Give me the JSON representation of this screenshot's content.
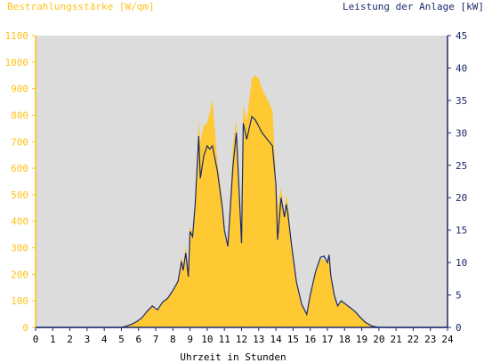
{
  "chart_data": {
    "type": "area",
    "left_axis_label": "Bestrahlungsstärke [W/qm]",
    "right_axis_label": "Leistung der Anlage [kW]",
    "xlabel": "Uhrzeit in Stunden",
    "x_ticks": [
      "0",
      "1",
      "2",
      "3",
      "4",
      "5",
      "6",
      "7",
      "8",
      "9",
      "10",
      "11",
      "12",
      "13",
      "14",
      "15",
      "16",
      "17",
      "18",
      "19",
      "20",
      "21",
      "22",
      "23",
      "24"
    ],
    "xlim": [
      0,
      24
    ],
    "y_left_ticks": [
      "0",
      "100",
      "200",
      "300",
      "400",
      "500",
      "600",
      "700",
      "800",
      "900",
      "1000",
      "1100"
    ],
    "y_left_lim": [
      0,
      1100
    ],
    "y_right_ticks": [
      "0",
      "5",
      "10",
      "15",
      "20",
      "25",
      "30",
      "35",
      "40",
      "45"
    ],
    "y_right_lim": [
      0,
      45
    ],
    "grid": false,
    "colors": {
      "irradiance_fill": "#ffc933",
      "power_line": "#1b2a6b",
      "plot_background": "#dcdcdc",
      "left_axis": "#ffc21a",
      "right_axis": "#1b2a6b"
    },
    "series": [
      {
        "axis": "left",
        "style": "area",
        "x": [
          0,
          5,
          5.3,
          5.6,
          5.9,
          6.2,
          6.5,
          6.8,
          7.1,
          7.4,
          7.7,
          8,
          8.3,
          8.5,
          8.6,
          8.75,
          8.9,
          9,
          9.15,
          9.3,
          9.5,
          9.6,
          9.8,
          10,
          10.15,
          10.3,
          10.6,
          10.9,
          11,
          11.2,
          11.5,
          11.7,
          11.85,
          12,
          12.1,
          12.3,
          12.6,
          12.8,
          13,
          13.2,
          13.5,
          13.8,
          14,
          14.1,
          14.3,
          14.5,
          14.6,
          14.7,
          14.9,
          15.2,
          15.5,
          15.8,
          16,
          16.3,
          16.6,
          16.8,
          17,
          17.1,
          17.2,
          17.4,
          17.6,
          17.8,
          18,
          18.3,
          18.6,
          18.9,
          19.2,
          19.6,
          20,
          24
        ],
        "y": [
          0,
          0,
          5,
          12,
          22,
          35,
          60,
          80,
          65,
          95,
          110,
          140,
          175,
          270,
          230,
          310,
          200,
          380,
          360,
          470,
          780,
          700,
          760,
          770,
          810,
          860,
          620,
          470,
          350,
          300,
          690,
          780,
          520,
          310,
          840,
          780,
          940,
          950,
          940,
          900,
          860,
          820,
          560,
          450,
          530,
          420,
          500,
          470,
          330,
          170,
          90,
          50,
          120,
          200,
          260,
          255,
          240,
          260,
          200,
          120,
          80,
          100,
          90,
          75,
          60,
          40,
          20,
          5,
          0,
          0
        ]
      },
      {
        "axis": "right",
        "style": "line",
        "x": [
          0,
          5,
          5.3,
          5.6,
          5.9,
          6.2,
          6.5,
          6.8,
          7.1,
          7.4,
          7.7,
          8,
          8.3,
          8.5,
          8.6,
          8.75,
          8.9,
          9,
          9.15,
          9.3,
          9.5,
          9.6,
          9.8,
          10,
          10.15,
          10.3,
          10.6,
          10.9,
          11,
          11.2,
          11.5,
          11.7,
          11.85,
          12,
          12.1,
          12.3,
          12.6,
          12.8,
          13,
          13.2,
          13.5,
          13.8,
          14,
          14.1,
          14.3,
          14.5,
          14.6,
          14.7,
          14.9,
          15.2,
          15.5,
          15.8,
          16,
          16.3,
          16.6,
          16.8,
          17,
          17.1,
          17.2,
          17.4,
          17.6,
          17.8,
          18,
          18.3,
          18.6,
          18.9,
          19.2,
          19.6,
          20,
          24
        ],
        "y": [
          0,
          0,
          0.2,
          0.5,
          0.9,
          1.5,
          2.5,
          3.3,
          2.7,
          3.9,
          4.5,
          5.7,
          7.1,
          10.2,
          8.8,
          11.5,
          7.8,
          14.8,
          14,
          19,
          29.5,
          23,
          26.5,
          28,
          27.5,
          28,
          24,
          18,
          15,
          12.5,
          25,
          30,
          21.5,
          13,
          31.5,
          29,
          32.5,
          32,
          31,
          30,
          29,
          28,
          22,
          13.5,
          20,
          17,
          19,
          17.5,
          13,
          7,
          3.6,
          2,
          5,
          8.5,
          10.8,
          11,
          10,
          11.2,
          8,
          5,
          3.3,
          4.1,
          3.7,
          3.1,
          2.5,
          1.6,
          0.8,
          0.2,
          0,
          0
        ]
      }
    ]
  }
}
